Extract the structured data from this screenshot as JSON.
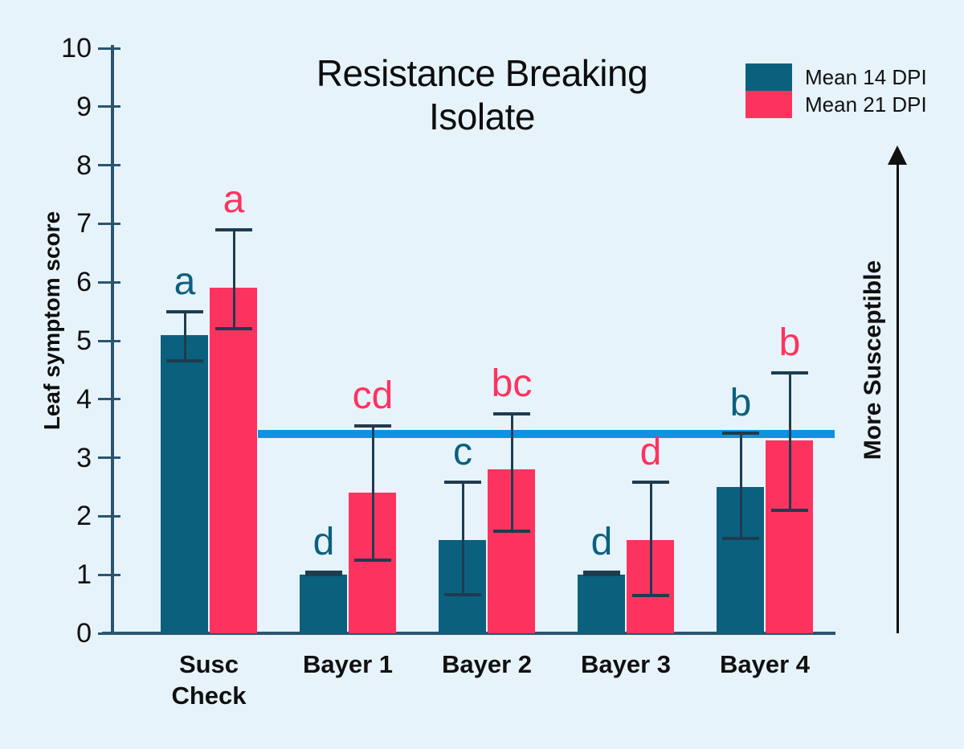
{
  "page": {
    "background": "#e7f3fa"
  },
  "title": {
    "line1": "Resistance Breaking",
    "line2": "Isolate"
  },
  "chart_data": {
    "type": "bar",
    "title": "Resistance Breaking Isolate",
    "xlabel": "",
    "ylabel": "Leaf symptom score",
    "ylim": [
      0,
      10
    ],
    "ytick_step": 1,
    "grid": false,
    "legend_position": "top-right",
    "categories": [
      "Susc Check",
      "Bayer 1",
      "Bayer 2",
      "Bayer 3",
      "Bayer 4"
    ],
    "categories_display": [
      "Susc\nCheck",
      "Bayer 1",
      "Bayer 2",
      "Bayer 3",
      "Bayer 4"
    ],
    "series": [
      {
        "name": "Mean 14 DPI",
        "color": "#0b607e",
        "values": [
          5.1,
          1.0,
          1.6,
          1.0,
          2.5
        ],
        "error_low": [
          4.65,
          1.0,
          0.66,
          1.0,
          1.62
        ],
        "error_high": [
          5.5,
          1.05,
          2.58,
          1.05,
          3.42
        ],
        "sig_letters": [
          "a",
          "d",
          "c",
          "d",
          "b"
        ]
      },
      {
        "name": "Mean 21 DPI",
        "color": "#fd335f",
        "values": [
          5.9,
          2.4,
          2.8,
          1.6,
          3.3
        ],
        "error_low": [
          5.2,
          1.25,
          1.75,
          0.65,
          2.1
        ],
        "error_high": [
          6.9,
          3.55,
          3.75,
          2.58,
          4.45
        ],
        "sig_letters": [
          "a",
          "cd",
          "bc",
          "d",
          "b"
        ]
      }
    ],
    "threshold_line": {
      "value": 3.4,
      "color": "#0e93dc"
    },
    "annotation_arrow": {
      "label": "More Susceptible",
      "direction": "up"
    },
    "error_bar_color": "#1e3c50",
    "axis_color": "#2a5570"
  }
}
